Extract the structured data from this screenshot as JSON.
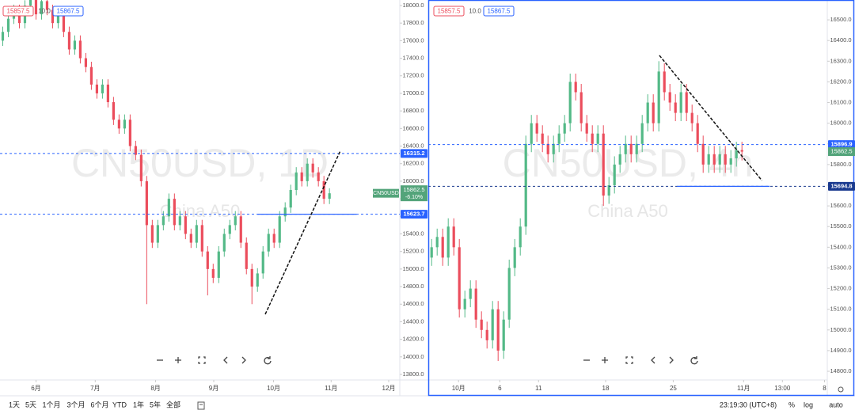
{
  "chart_data": [
    {
      "type": "candlestick",
      "watermark": "CN50USD, 1D",
      "subtitle": "China A50",
      "quote": {
        "bid": 15857.5,
        "spread": "10.0",
        "ask": 15867.5
      },
      "up_color": "#53b987",
      "down_color": "#eb4d5c",
      "xlim": [
        -0.5,
        71.7
      ],
      "ylim": [
        13737,
        18063
      ],
      "xticks": [
        {
          "value": 6,
          "label": "6月"
        },
        {
          "value": 16.7,
          "label": "7月"
        },
        {
          "value": 27.6,
          "label": "8月"
        },
        {
          "value": 38.1,
          "label": "9月"
        },
        {
          "value": 48.9,
          "label": "10月"
        },
        {
          "value": 59.3,
          "label": "11月"
        },
        {
          "value": 69.7,
          "label": "12月"
        }
      ],
      "yticks": [
        {
          "value": 13800,
          "label": "13800.0"
        },
        {
          "value": 14000,
          "label": "14000.0"
        },
        {
          "value": 14200,
          "label": "14200.0"
        },
        {
          "value": 14400,
          "label": "14400.0"
        },
        {
          "value": 14600,
          "label": "14600.0"
        },
        {
          "value": 14800,
          "label": "14800.0"
        },
        {
          "value": 15000,
          "label": "15000.0"
        },
        {
          "value": 15200,
          "label": "15200.0"
        },
        {
          "value": 15400,
          "label": "15400.0"
        },
        {
          "value": 15600,
          "label": "15600.0"
        },
        {
          "value": 15800,
          "label": "15800.0"
        },
        {
          "value": 16000,
          "label": "16000.0"
        },
        {
          "value": 16200,
          "label": "16200.0"
        },
        {
          "value": 16400,
          "label": "16400.0"
        },
        {
          "value": 16600,
          "label": "16600.0"
        },
        {
          "value": 16800,
          "label": "16800.0"
        },
        {
          "value": 17000,
          "label": "17000.0"
        },
        {
          "value": 17200,
          "label": "17200.0"
        },
        {
          "value": 17400,
          "label": "17400.0"
        },
        {
          "value": 17600,
          "label": "17600.0"
        },
        {
          "value": 17800,
          "label": "17800.0"
        },
        {
          "value": 18000,
          "label": "18000.0"
        }
      ],
      "price_lines": [
        {
          "value": 16315.2,
          "color": "#2962ff"
        },
        {
          "value": 15623.7,
          "color": "#2962ff"
        }
      ],
      "last": {
        "symbol": "CN50USD",
        "price": 15862.5,
        "change": "-6.10%",
        "color": "#53a47a"
      },
      "trendline": [
        [
          47.4,
          14485
        ],
        [
          61,
          16350
        ]
      ],
      "segment": {
        "value": 15623.7,
        "from": 46,
        "to": 63.9
      },
      "ohlc": [
        [
          17600,
          17760,
          17540,
          17700
        ],
        [
          17700,
          17910,
          17640,
          17850
        ],
        [
          17850,
          18010,
          17790,
          17950
        ],
        [
          17950,
          18010,
          17740,
          17800
        ],
        [
          17800,
          18060,
          17740,
          18000
        ],
        [
          18000,
          18160,
          17940,
          18100
        ],
        [
          18100,
          18160,
          17840,
          17900
        ],
        [
          17900,
          18110,
          17840,
          18050
        ],
        [
          18050,
          18110,
          17890,
          17950
        ],
        [
          17950,
          18010,
          17740,
          17800
        ],
        [
          17800,
          17960,
          17740,
          17900
        ],
        [
          17900,
          17960,
          17640,
          17700
        ],
        [
          17700,
          17760,
          17440,
          17500
        ],
        [
          17500,
          17660,
          17440,
          17600
        ],
        [
          17600,
          17660,
          17340,
          17400
        ],
        [
          17400,
          17460,
          17240,
          17300
        ],
        [
          17300,
          17360,
          17040,
          17100
        ],
        [
          17100,
          17160,
          16940,
          17000
        ],
        [
          17000,
          17160,
          16940,
          17100
        ],
        [
          17100,
          17160,
          16840,
          16900
        ],
        [
          16900,
          16960,
          16640,
          16700
        ],
        [
          16700,
          16760,
          16540,
          16600
        ],
        [
          16600,
          16760,
          16540,
          16700
        ],
        [
          16700,
          16760,
          16340,
          16400
        ],
        [
          16400,
          16460,
          16240,
          16300
        ],
        [
          16300,
          16360,
          15940,
          16000
        ],
        [
          16000,
          16060,
          14600,
          15500
        ],
        [
          15500,
          15560,
          15240,
          15300
        ],
        [
          15300,
          15560,
          15240,
          15500
        ],
        [
          15500,
          15660,
          15440,
          15600
        ],
        [
          15600,
          15860,
          15540,
          15800
        ],
        [
          15800,
          15860,
          15440,
          15500
        ],
        [
          15500,
          15660,
          15440,
          15600
        ],
        [
          15600,
          15660,
          15340,
          15400
        ],
        [
          15400,
          15460,
          15240,
          15300
        ],
        [
          15300,
          15560,
          15240,
          15500
        ],
        [
          15500,
          15560,
          15140,
          15200
        ],
        [
          15200,
          15260,
          14700,
          15000
        ],
        [
          15000,
          15060,
          14840,
          14900
        ],
        [
          14900,
          15260,
          14840,
          15200
        ],
        [
          15200,
          15460,
          15140,
          15400
        ],
        [
          15400,
          15560,
          15340,
          15500
        ],
        [
          15500,
          15660,
          15440,
          15600
        ],
        [
          15600,
          15660,
          15240,
          15300
        ],
        [
          15300,
          15360,
          14940,
          15000
        ],
        [
          15000,
          15060,
          14600,
          14800
        ],
        [
          14800,
          15010,
          14740,
          14950
        ],
        [
          14950,
          15260,
          14890,
          15200
        ],
        [
          15200,
          15460,
          15140,
          15400
        ],
        [
          15400,
          15460,
          15240,
          15300
        ],
        [
          15300,
          15660,
          15240,
          15600
        ],
        [
          15600,
          15760,
          15540,
          15700
        ],
        [
          15700,
          15960,
          15640,
          15900
        ],
        [
          15900,
          16160,
          15840,
          16100
        ],
        [
          16100,
          16160,
          15940,
          16000
        ],
        [
          16000,
          16260,
          15940,
          16200
        ],
        [
          16200,
          16260,
          16040,
          16100
        ],
        [
          16100,
          16160,
          15940,
          16000
        ],
        [
          16000,
          16060,
          15740,
          15800
        ],
        [
          15800,
          15920,
          15740,
          15862.5
        ]
      ]
    },
    {
      "type": "candlestick",
      "watermark": "CN50USD, 4h",
      "subtitle": "China A50",
      "quote": {
        "bid": 15857.5,
        "spread": "10.0",
        "ask": 15867.5
      },
      "up_color": "#53b987",
      "down_color": "#eb4d5c",
      "xlim": [
        -0.6,
        71.4
      ],
      "ylim": [
        14758,
        16596
      ],
      "xticks": [
        {
          "value": 4.86,
          "label": "10月"
        },
        {
          "value": 12.3,
          "label": "6"
        },
        {
          "value": 19.3,
          "label": "11"
        },
        {
          "value": 31.4,
          "label": "18"
        },
        {
          "value": 43.6,
          "label": "25"
        },
        {
          "value": 56.3,
          "label": "11月"
        },
        {
          "value": 63.3,
          "label": "13:00"
        },
        {
          "value": 70.9,
          "label": "8"
        }
      ],
      "yticks": [
        {
          "value": 14800,
          "label": "14800.0"
        },
        {
          "value": 14900,
          "label": "14900.0"
        },
        {
          "value": 15000,
          "label": "15000.0"
        },
        {
          "value": 15100,
          "label": "15100.0"
        },
        {
          "value": 15200,
          "label": "15200.0"
        },
        {
          "value": 15300,
          "label": "15300.0"
        },
        {
          "value": 15400,
          "label": "15400.0"
        },
        {
          "value": 15500,
          "label": "15500.0"
        },
        {
          "value": 15600,
          "label": "15600.0"
        },
        {
          "value": 15700,
          "label": "15700.0"
        },
        {
          "value": 15800,
          "label": "15800.0"
        },
        {
          "value": 15900,
          "label": "15900.0"
        },
        {
          "value": 16000,
          "label": "16000.0"
        },
        {
          "value": 16100,
          "label": "16100.0"
        },
        {
          "value": 16200,
          "label": "16200.0"
        },
        {
          "value": 16300,
          "label": "16300.0"
        },
        {
          "value": 16400,
          "label": "16400.0"
        },
        {
          "value": 16500,
          "label": "16500.0"
        }
      ],
      "price_lines": [
        {
          "value": 15896.9,
          "color": "#2962ff"
        },
        {
          "value": 15694.8,
          "color": "#1a3a8f"
        }
      ],
      "last": {
        "price": 15862.5,
        "color": "#53a47a"
      },
      "trendline": [
        [
          41.1,
          16328
        ],
        [
          59.6,
          15723
        ]
      ],
      "segment": {
        "value": 15694.8,
        "from": 44.3,
        "to": 61
      },
      "ohlc": [
        [
          15350,
          15440,
          15310,
          15400
        ],
        [
          15400,
          15490,
          15360,
          15450
        ],
        [
          15450,
          15490,
          15310,
          15350
        ],
        [
          15350,
          15540,
          15310,
          15500
        ],
        [
          15500,
          15540,
          15360,
          15400
        ],
        [
          15400,
          15440,
          15060,
          15100
        ],
        [
          15100,
          15190,
          15060,
          15150
        ],
        [
          15150,
          15240,
          15110,
          15200
        ],
        [
          15200,
          15240,
          15010,
          15050
        ],
        [
          15050,
          15090,
          14960,
          15000
        ],
        [
          15000,
          15040,
          14910,
          14950
        ],
        [
          14950,
          15140,
          14910,
          15100
        ],
        [
          15100,
          15140,
          14850,
          14900
        ],
        [
          14900,
          15090,
          14860,
          15050
        ],
        [
          15050,
          15340,
          15010,
          15300
        ],
        [
          15300,
          15440,
          15260,
          15400
        ],
        [
          15400,
          15540,
          15360,
          15500
        ],
        [
          15500,
          15940,
          15460,
          15900
        ],
        [
          15900,
          16040,
          15860,
          16000
        ],
        [
          16000,
          16040,
          15910,
          15950
        ],
        [
          15950,
          15990,
          15860,
          15900
        ],
        [
          15900,
          15940,
          15810,
          15850
        ],
        [
          15850,
          15940,
          15810,
          15900
        ],
        [
          15900,
          15990,
          15860,
          15950
        ],
        [
          15950,
          16040,
          15910,
          16000
        ],
        [
          16000,
          16240,
          15960,
          16200
        ],
        [
          16200,
          16240,
          16110,
          16150
        ],
        [
          16150,
          16190,
          15960,
          16000
        ],
        [
          16000,
          16040,
          15910,
          15950
        ],
        [
          15950,
          15990,
          15860,
          15900
        ],
        [
          15900,
          15990,
          15860,
          15950
        ],
        [
          15950,
          15990,
          15600,
          15650
        ],
        [
          15650,
          15740,
          15610,
          15700
        ],
        [
          15700,
          15840,
          15660,
          15800
        ],
        [
          15800,
          15890,
          15760,
          15850
        ],
        [
          15850,
          15940,
          15810,
          15900
        ],
        [
          15900,
          15940,
          15810,
          15850
        ],
        [
          15850,
          15940,
          15810,
          15900
        ],
        [
          15900,
          16040,
          15860,
          16000
        ],
        [
          16000,
          16140,
          15960,
          16100
        ],
        [
          16100,
          16140,
          15960,
          16000
        ],
        [
          16000,
          16300,
          15960,
          16250
        ],
        [
          16250,
          16290,
          16110,
          16150
        ],
        [
          16150,
          16190,
          16060,
          16100
        ],
        [
          16100,
          16140,
          16010,
          16050
        ],
        [
          16050,
          16190,
          16010,
          16150
        ],
        [
          16150,
          16190,
          16010,
          16050
        ],
        [
          16050,
          16090,
          15960,
          16000
        ],
        [
          16000,
          16040,
          15860,
          15900
        ],
        [
          15900,
          15940,
          15760,
          15800
        ],
        [
          15800,
          15890,
          15760,
          15850
        ],
        [
          15850,
          15890,
          15760,
          15800
        ],
        [
          15800,
          15890,
          15760,
          15850
        ],
        [
          15850,
          15890,
          15760,
          15800
        ],
        [
          15800,
          15870,
          15760,
          15830
        ],
        [
          15830,
          15910,
          15790,
          15870
        ],
        [
          15870,
          15910,
          15820,
          15862.5
        ]
      ]
    }
  ],
  "toolbar": {
    "ranges": [
      "1天",
      "5天",
      "1个月",
      "3个月",
      "6个月",
      "YTD",
      "1年",
      "5年",
      "全部"
    ],
    "clock": "23:19:30 (UTC+8)",
    "options": [
      "%",
      "log",
      "auto"
    ]
  }
}
